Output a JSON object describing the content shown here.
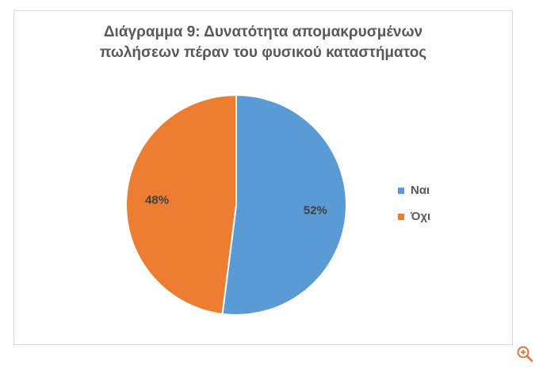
{
  "chart_data": {
    "type": "pie",
    "title_lines": [
      "Διάγραμμα 9: Δυνατότητα απομακρυσμένων",
      "πωλήσεων πέραν του φυσικού καταστήματος"
    ],
    "slices": [
      {
        "label": "Ναι",
        "value": 52,
        "display": "52%",
        "color": "#5b9bd5"
      },
      {
        "label": "Όχι",
        "value": 48,
        "display": "48%",
        "color": "#ed7d31"
      }
    ],
    "legend_position": "right",
    "start_angle_deg": 0,
    "direction": "clockwise"
  },
  "icons": {
    "zoom": "zoom-in-icon"
  },
  "colors": {
    "title_text": "#595959",
    "border": "#d9d9d9",
    "zoom_icon": "#e8733a"
  }
}
